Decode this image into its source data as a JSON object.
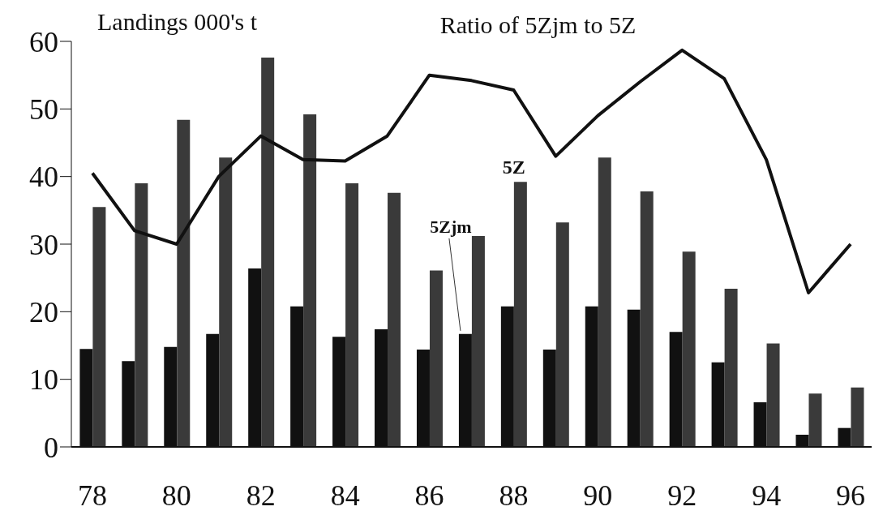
{
  "chart_data": {
    "type": "bar",
    "ylabel": "Landings 000's t",
    "categories": [
      "78",
      null,
      "80",
      null,
      "82",
      null,
      "84",
      null,
      "86",
      null,
      "88",
      null,
      "90",
      null,
      "92",
      null,
      "94",
      null,
      "96"
    ],
    "series": [
      {
        "name": "5Zjm",
        "color": "#111111",
        "values": [
          14.5,
          12.7,
          14.8,
          16.7,
          26.4,
          20.8,
          16.3,
          17.4,
          14.4,
          16.7,
          20.8,
          14.4,
          20.8,
          20.3,
          17,
          12.5,
          6.6,
          1.8,
          2.8
        ]
      },
      {
        "name": "5Z",
        "color": "#3a3a3a",
        "values": [
          35.5,
          39,
          48.4,
          42.8,
          57.6,
          49.2,
          39,
          37.6,
          26.1,
          31.2,
          39.2,
          33.2,
          42.8,
          37.8,
          28.9,
          23.4,
          15.3,
          7.9,
          8.8
        ]
      },
      {
        "name": "Ratio of 5Zjm to 5Z",
        "type": "line",
        "color": "#111111",
        "values": [
          40.5,
          32,
          30,
          40,
          46,
          42.5,
          42.3,
          46,
          55,
          54.2,
          52.8,
          43,
          49,
          54,
          58.7,
          54.5,
          42.5,
          22.8,
          30
        ]
      }
    ],
    "ylim": [
      0,
      60
    ],
    "yticks": [
      0,
      10,
      20,
      30,
      40,
      50,
      60
    ],
    "grid": false,
    "legend": false,
    "marker": "none",
    "line_style": "solid"
  }
}
